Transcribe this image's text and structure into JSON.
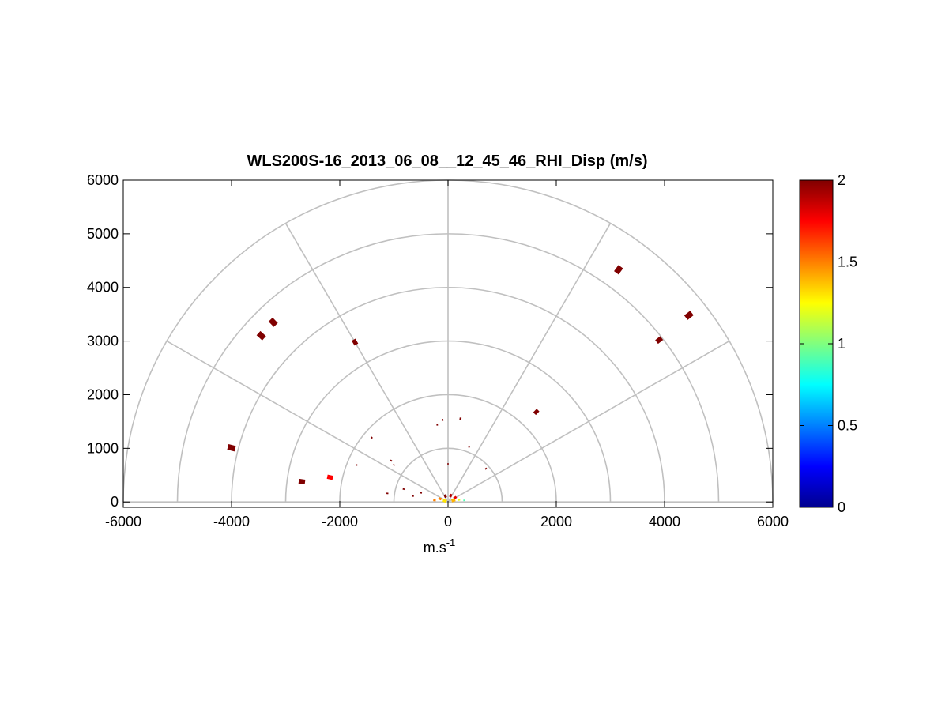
{
  "chart_data": {
    "type": "scatter",
    "title": "WLS200S-16_2013_06_08__12_45_46_RHI_Disp (m/s)",
    "xlabel": "m.s",
    "xlabel_superscript": "-1",
    "ylabel": "",
    "xlim": [
      -6000,
      6000
    ],
    "ylim": [
      -100,
      6000
    ],
    "x_ticks": [
      "-6000",
      "-4000",
      "-2000",
      "0",
      "2000",
      "4000",
      "6000"
    ],
    "y_ticks": [
      "0",
      "1000",
      "2000",
      "3000",
      "4000",
      "5000",
      "6000"
    ],
    "grid": "polar",
    "polar_rings": [
      1000,
      2000,
      3000,
      4000,
      5000,
      6000
    ],
    "polar_spokes_deg": [
      0,
      30,
      60,
      90,
      120,
      150,
      180
    ],
    "colorbar": {
      "colormap": "jet",
      "range": [
        0,
        2
      ],
      "ticks": [
        "0",
        "0.5",
        "1",
        "1.5",
        "2"
      ],
      "placement": "right"
    },
    "points": [
      {
        "x": -4000,
        "y": 1010,
        "v": 2.0,
        "size": 1.2
      },
      {
        "x": -3450,
        "y": 3100,
        "v": 2.0,
        "size": 1.2
      },
      {
        "x": -3230,
        "y": 3350,
        "v": 2.0,
        "size": 1.2
      },
      {
        "x": -2700,
        "y": 380,
        "v": 2.0,
        "size": 1.0
      },
      {
        "x": -2180,
        "y": 460,
        "v": 1.75,
        "size": 0.9
      },
      {
        "x": -1720,
        "y": 2980,
        "v": 2.0,
        "size": 0.9
      },
      {
        "x": 3150,
        "y": 4330,
        "v": 2.0,
        "size": 1.2
      },
      {
        "x": 4450,
        "y": 3480,
        "v": 2.0,
        "size": 1.2
      },
      {
        "x": 3900,
        "y": 3020,
        "v": 2.0,
        "size": 1.0
      },
      {
        "x": 1630,
        "y": 1680,
        "v": 2.0,
        "size": 0.8
      },
      {
        "x": 230,
        "y": 1550,
        "v": 2.0,
        "size": 0.4
      },
      {
        "x": -100,
        "y": 1530,
        "v": 2.0,
        "size": 0.3
      },
      {
        "x": -200,
        "y": 1440,
        "v": 2.0,
        "size": 0.3
      },
      {
        "x": -1410,
        "y": 1200,
        "v": 2.0,
        "size": 0.3
      },
      {
        "x": 390,
        "y": 1030,
        "v": 2.0,
        "size": 0.3
      },
      {
        "x": -1690,
        "y": 690,
        "v": 2.0,
        "size": 0.3
      },
      {
        "x": -1050,
        "y": 770,
        "v": 2.0,
        "size": 0.3
      },
      {
        "x": -1000,
        "y": 690,
        "v": 2.0,
        "size": 0.3
      },
      {
        "x": 0,
        "y": 710,
        "v": 2.0,
        "size": 0.25
      },
      {
        "x": 700,
        "y": 620,
        "v": 2.0,
        "size": 0.3
      },
      {
        "x": -820,
        "y": 240,
        "v": 2.0,
        "size": 0.3
      },
      {
        "x": -1120,
        "y": 160,
        "v": 2.0,
        "size": 0.3
      },
      {
        "x": -650,
        "y": 110,
        "v": 2.0,
        "size": 0.3
      },
      {
        "x": -500,
        "y": 170,
        "v": 2.0,
        "size": 0.3
      },
      {
        "x": -50,
        "y": 110,
        "v": 2.0,
        "size": 0.5
      },
      {
        "x": 50,
        "y": 120,
        "v": 1.9,
        "size": 0.5
      },
      {
        "x": 130,
        "y": 80,
        "v": 1.8,
        "size": 0.5
      },
      {
        "x": -150,
        "y": 60,
        "v": 1.5,
        "size": 0.5
      },
      {
        "x": 100,
        "y": 30,
        "v": 1.4,
        "size": 0.6
      },
      {
        "x": -60,
        "y": 20,
        "v": 1.3,
        "size": 0.6
      },
      {
        "x": 200,
        "y": 40,
        "v": 1.2,
        "size": 0.4
      },
      {
        "x": 300,
        "y": 30,
        "v": 0.9,
        "size": 0.3
      },
      {
        "x": -250,
        "y": 30,
        "v": 1.5,
        "size": 0.4
      }
    ]
  }
}
